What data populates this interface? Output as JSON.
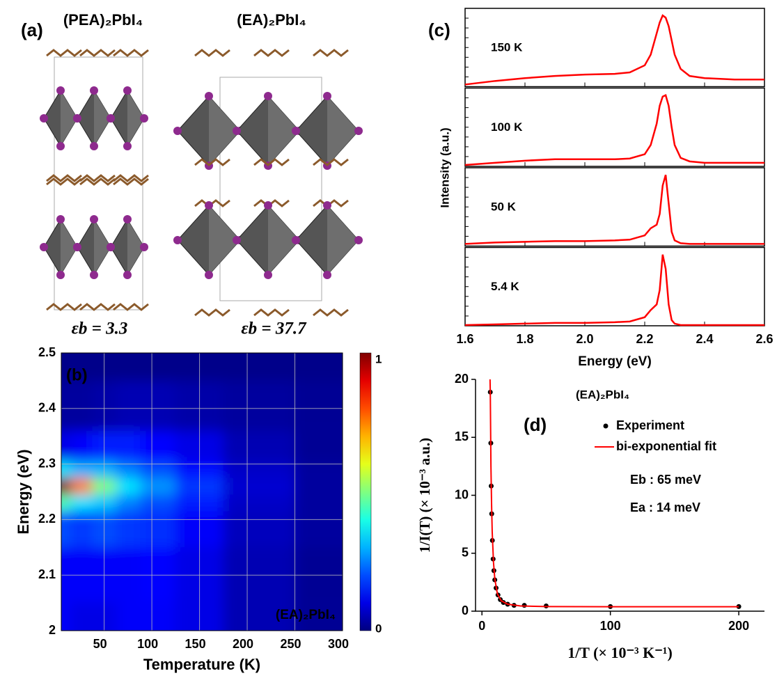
{
  "panel_a": {
    "label": "(a)",
    "structures": [
      {
        "name": "(PEA)₂PbI₄",
        "binding": "εb = 3.3"
      },
      {
        "name": "(EA)₂PbI₄",
        "binding": "εb = 37.7"
      }
    ]
  },
  "chart_data": [
    {
      "type": "heatmap",
      "panel": "(b)",
      "annotation": "(EA)₂PbI₄",
      "xlabel": "Temperature (K)",
      "ylabel": "Energy (eV)",
      "x": [
        5,
        25,
        50,
        75,
        100,
        150,
        200,
        300
      ],
      "y": [
        2.0,
        2.1,
        2.2,
        2.23,
        2.26,
        2.29,
        2.32,
        2.4,
        2.5
      ],
      "z": [
        [
          0.12,
          0.1,
          0.1,
          0.12,
          0.12,
          0.1,
          0.05,
          0.02
        ],
        [
          0.12,
          0.12,
          0.12,
          0.12,
          0.13,
          0.1,
          0.05,
          0.02
        ],
        [
          0.2,
          0.18,
          0.2,
          0.18,
          0.17,
          0.12,
          0.06,
          0.03
        ],
        [
          0.45,
          0.35,
          0.32,
          0.25,
          0.2,
          0.15,
          0.07,
          0.03
        ],
        [
          1.0,
          0.75,
          0.5,
          0.35,
          0.27,
          0.18,
          0.08,
          0.03
        ],
        [
          0.35,
          0.3,
          0.3,
          0.25,
          0.2,
          0.14,
          0.07,
          0.03
        ],
        [
          0.1,
          0.12,
          0.15,
          0.15,
          0.13,
          0.1,
          0.05,
          0.02
        ],
        [
          0.03,
          0.03,
          0.04,
          0.05,
          0.05,
          0.04,
          0.03,
          0.02
        ],
        [
          0.01,
          0.01,
          0.01,
          0.01,
          0.01,
          0.01,
          0.01,
          0.01
        ]
      ],
      "xlim": [
        5,
        300
      ],
      "xticks": [
        50,
        100,
        150,
        200,
        250,
        300
      ],
      "ylim": [
        2,
        2.5
      ],
      "yticks": [
        2,
        2.1,
        2.2,
        2.3,
        2.4,
        2.5
      ],
      "colormap": "jet",
      "clim": [
        0,
        1
      ],
      "colorbar_ticks": [
        0,
        1
      ],
      "grid": true
    },
    {
      "type": "line",
      "panel": "(c)",
      "stacked_panels": true,
      "xlabel": "Energy (eV)",
      "ylabel": "Intensity (a.u.)",
      "x": [
        1.6,
        1.7,
        1.8,
        1.9,
        2.0,
        2.1,
        2.15,
        2.2,
        2.22,
        2.24,
        2.25,
        2.26,
        2.27,
        2.28,
        2.29,
        2.3,
        2.32,
        2.35,
        2.4,
        2.5,
        2.6
      ],
      "xlim": [
        1.6,
        2.6
      ],
      "xticks": [
        1.6,
        1.8,
        {
          "value": 2,
          "label": "2.0"
        },
        2.2,
        2.4,
        2.6
      ],
      "ylim": [
        0,
        1.1
      ],
      "series": [
        {
          "name": "150 K",
          "color": "#ff0000",
          "values": [
            0.03,
            0.08,
            0.12,
            0.15,
            0.17,
            0.18,
            0.2,
            0.3,
            0.45,
            0.75,
            0.9,
            1.0,
            0.97,
            0.85,
            0.65,
            0.45,
            0.25,
            0.15,
            0.12,
            0.1,
            0.1
          ]
        },
        {
          "name": "100 K",
          "color": "#ff0000",
          "values": [
            0.02,
            0.05,
            0.08,
            0.1,
            0.1,
            0.1,
            0.11,
            0.17,
            0.3,
            0.6,
            0.85,
            0.98,
            1.0,
            0.85,
            0.55,
            0.3,
            0.12,
            0.07,
            0.05,
            0.05,
            0.05
          ]
        },
        {
          "name": "50 K",
          "color": "#ff0000",
          "values": [
            0.03,
            0.05,
            0.06,
            0.07,
            0.07,
            0.08,
            0.09,
            0.15,
            0.25,
            0.3,
            0.45,
            0.85,
            1.0,
            0.6,
            0.2,
            0.08,
            0.04,
            0.03,
            0.03,
            0.03,
            0.03
          ]
        },
        {
          "name": "5.4 K",
          "color": "#ff0000",
          "values": [
            0.01,
            0.02,
            0.03,
            0.04,
            0.04,
            0.05,
            0.06,
            0.12,
            0.22,
            0.3,
            0.5,
            1.0,
            0.8,
            0.3,
            0.08,
            0.03,
            0.01,
            0.01,
            0.01,
            0.01,
            0.01
          ]
        }
      ]
    },
    {
      "type": "scatter",
      "panel": "(d)",
      "title": "(EA)₂PbI₄",
      "xlabel": "1/T (× 10⁻³ K⁻¹)",
      "ylabel": "1/I(T) (× 10⁻³ a.u.)",
      "annotations": [
        "Eb : 65 meV",
        "Ea : 14 meV"
      ],
      "xlim": [
        -5,
        220
      ],
      "xticks": [
        0,
        100,
        200
      ],
      "ylim": [
        0,
        20
      ],
      "yticks": [
        0,
        5,
        10,
        15,
        20
      ],
      "series": [
        {
          "name": "Experiment",
          "color": "#000000",
          "kind": "scatter",
          "x": [
            6.5,
            6.9,
            7.2,
            7.6,
            8.1,
            8.7,
            9.3,
            10,
            11,
            12.5,
            14.3,
            16.7,
            20,
            25,
            33,
            50,
            100,
            200
          ],
          "values": [
            18.9,
            14.5,
            10.8,
            8.4,
            6.1,
            4.5,
            3.5,
            2.7,
            2.0,
            1.4,
            1.0,
            0.75,
            0.6,
            0.5,
            0.5,
            0.45,
            0.4,
            0.4
          ]
        },
        {
          "name": "bi-exponential fit",
          "color": "#ff0000",
          "kind": "line",
          "x": [
            6.3,
            6.5,
            7,
            7.5,
            8,
            9,
            10,
            12,
            15,
            20,
            30,
            50,
            100,
            200
          ],
          "values": [
            20,
            18.9,
            12.5,
            9.2,
            6.8,
            4.2,
            2.8,
            1.5,
            0.9,
            0.6,
            0.45,
            0.4,
            0.38,
            0.38
          ]
        }
      ]
    }
  ]
}
